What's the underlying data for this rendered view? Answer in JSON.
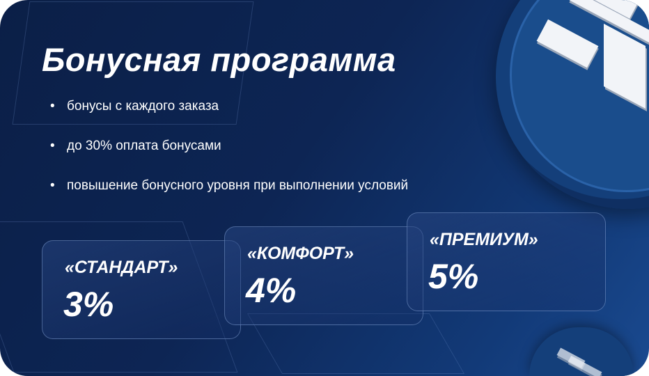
{
  "title": "Бонусная программа",
  "bullets": [
    "бонусы с каждого заказа",
    "до 30% оплата бонусами",
    "повышение бонусного уровня при выполнении условий"
  ],
  "tiers": [
    {
      "name": "«СТАНДАРТ»",
      "percent": "3%"
    },
    {
      "name": "«КОМФОРТ»",
      "percent": "4%"
    },
    {
      "name": "«ПРЕМИУМ»",
      "percent": "5%"
    }
  ],
  "colors": {
    "background": "#0c2049",
    "accent": "#1a4d8c",
    "text": "#ffffff"
  },
  "icons": [
    "coin-logo-icon"
  ]
}
